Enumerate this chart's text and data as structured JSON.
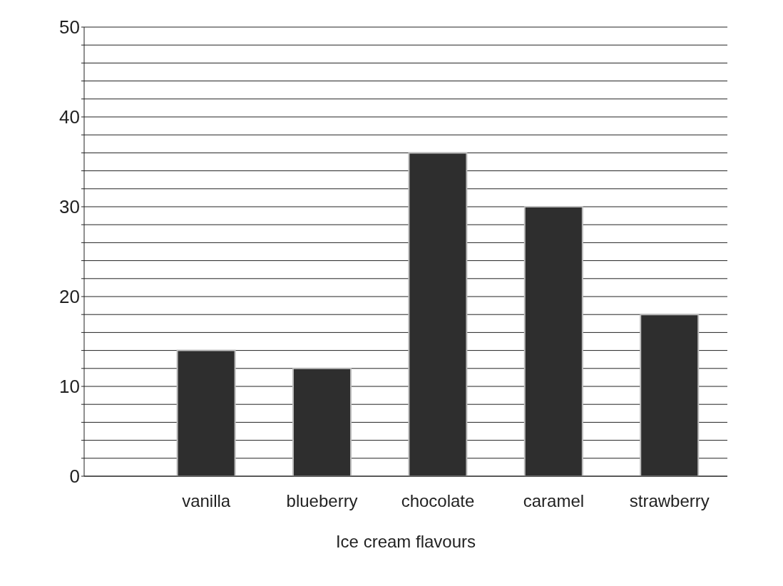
{
  "chart_data": {
    "type": "bar",
    "xlabel": "Ice cream flavours",
    "categories": [
      "vanilla",
      "blueberry",
      "chocolate",
      "caramel",
      "strawberry"
    ],
    "values": [
      14,
      12,
      36,
      30,
      18
    ],
    "color": "#2e2e2e",
    "ylim": [
      0,
      50
    ],
    "yticks": [
      0,
      {
        "value": 2,
        "label": null
      },
      {
        "value": 4,
        "label": null
      },
      {
        "value": 6,
        "label": null
      },
      {
        "value": 8,
        "label": null
      },
      10,
      {
        "value": 12,
        "label": null
      },
      {
        "value": 14,
        "label": null
      },
      {
        "value": 16,
        "label": null
      },
      {
        "value": 18,
        "label": null
      },
      20,
      {
        "value": 22,
        "label": null
      },
      {
        "value": 24,
        "label": null
      },
      {
        "value": 26,
        "label": null
      },
      {
        "value": 28,
        "label": null
      },
      30,
      {
        "value": 32,
        "label": null
      },
      {
        "value": 34,
        "label": null
      },
      {
        "value": 36,
        "label": null
      },
      {
        "value": 38,
        "label": null
      },
      40,
      {
        "value": 42,
        "label": null
      },
      {
        "value": 44,
        "label": null
      },
      {
        "value": 46,
        "label": null
      },
      {
        "value": 48,
        "label": null
      },
      50
    ],
    "grid": "y"
  }
}
